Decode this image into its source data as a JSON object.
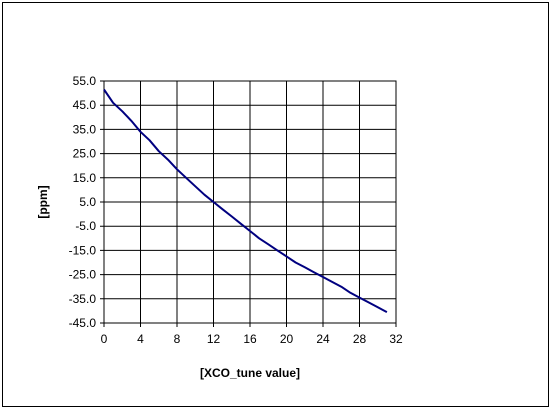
{
  "chart_data": {
    "type": "line",
    "title": "",
    "xlabel": "[XCO_tune value]",
    "ylabel": "[ppm]",
    "xlim": [
      0,
      32
    ],
    "ylim": [
      -45,
      55
    ],
    "x_ticks": [
      "0",
      "4",
      "8",
      "12",
      "16",
      "20",
      "24",
      "28",
      "32"
    ],
    "y_ticks": [
      "55.0",
      "45.0",
      "35.0",
      "25.0",
      "15.0",
      "5.0",
      "-5.0",
      "-15.0",
      "-25.0",
      "-35.0",
      "-45.0"
    ],
    "grid": true,
    "legend": "none",
    "series": [
      {
        "color": "#000080",
        "x": [
          0,
          1,
          2,
          3,
          4,
          5,
          6,
          7,
          8,
          9,
          10,
          11,
          12,
          13,
          14,
          15,
          16,
          17,
          18,
          19,
          20,
          21,
          22,
          23,
          24,
          25,
          26,
          27,
          28,
          29,
          30,
          31
        ],
        "y": [
          51.5,
          46.0,
          42.5,
          38.5,
          34.0,
          30.5,
          26.0,
          22.5,
          18.5,
          15.0,
          11.5,
          8.0,
          5.0,
          2.0,
          -1.0,
          -4.0,
          -7.0,
          -10.0,
          -12.5,
          -15.0,
          -17.5,
          -20.0,
          -22.0,
          -24.0,
          -26.0,
          -28.0,
          -30.0,
          -32.5,
          -34.5,
          -36.5,
          -38.5,
          -40.5
        ]
      }
    ]
  }
}
